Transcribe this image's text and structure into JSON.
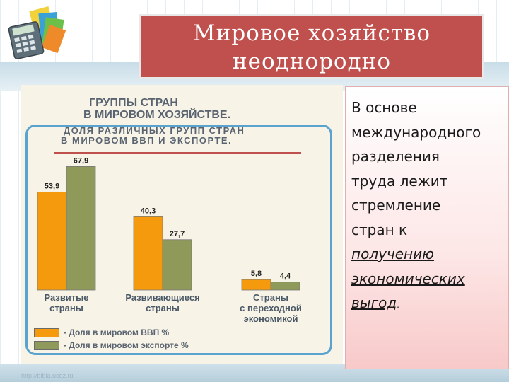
{
  "title": {
    "line1": "Мировое хозяйство",
    "line2": "неоднородно"
  },
  "chart_data": {
    "type": "bar",
    "title": "ГРУППЫ СТРАН В МИРОВОМ ХОЗЯЙСТВЕ.",
    "title_lines": [
      "ГРУППЫ СТРАН",
      "В МИРОВОМ ХОЗЯЙСТВЕ."
    ],
    "subtitle_lines": [
      "ДОЛЯ РАЗЛИЧНЫХ ГРУПП СТРАН",
      "В МИРОВОМ ВВП И ЭКСПОРТЕ."
    ],
    "categories": [
      [
        "Развитые",
        "страны"
      ],
      [
        "Развивающиеся",
        "страны"
      ],
      [
        "Страны",
        "с переходной",
        "экономикой"
      ]
    ],
    "series": [
      {
        "name": "- Доля в мировом ВВП %",
        "color": "#f59a0c",
        "values": [
          53.9,
          40.3,
          5.8
        ],
        "labels": [
          "53,9",
          "40,3",
          "5,8"
        ]
      },
      {
        "name": "- Доля в мировом экспорте %",
        "color": "#8f9a5a",
        "values": [
          67.9,
          27.7,
          4.4
        ],
        "labels": [
          "67,9",
          "27,7",
          "4,4"
        ]
      }
    ],
    "ylim": [
      0,
      70
    ],
    "grid": false,
    "legend": "bottom-left"
  },
  "text": {
    "lines": [
      "В основе",
      "международного",
      "разделения",
      "труда лежит",
      "стремление",
      "стран к"
    ],
    "emph_lines": [
      "получению",
      "экономических",
      "выгод"
    ],
    "end_mark": "."
  },
  "footer": {
    "url": "http://bibla.ucoz.ru"
  },
  "colors": {
    "title_bg": "#c0504d",
    "frame": "#5aa3cf",
    "gdp": "#f59a0c",
    "export": "#8f9a5a"
  },
  "icons": {
    "logo": "calculator-books-icon"
  }
}
